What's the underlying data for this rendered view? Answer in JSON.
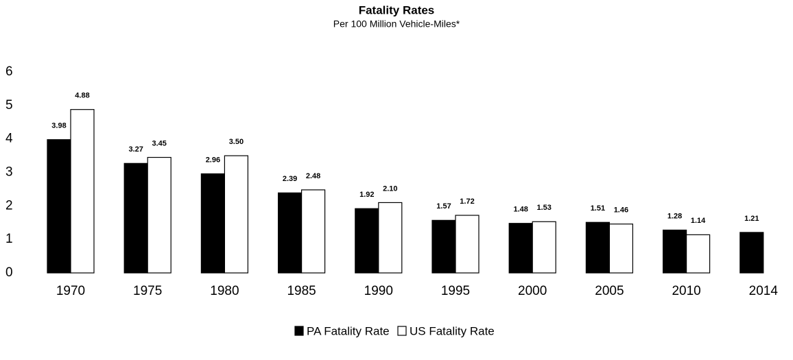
{
  "chart_data": {
    "type": "bar",
    "title": "Fatality Rates",
    "subtitle": "Per 100 Million Vehicle-Miles*",
    "categories": [
      "1970",
      "1975",
      "1980",
      "1985",
      "1990",
      "1995",
      "2000",
      "2005",
      "2010",
      "2014"
    ],
    "series": [
      {
        "name": "PA Fatality Rate",
        "color": "#000000",
        "values": [
          3.98,
          3.27,
          2.96,
          2.39,
          1.92,
          1.57,
          1.48,
          1.51,
          1.28,
          1.21
        ],
        "value_labels": [
          "3.98",
          "3.27",
          "2.96",
          "2.39",
          "1.92",
          "1.57",
          "1.48",
          "1.51",
          "1.28",
          "1.21"
        ]
      },
      {
        "name": "US Fatality Rate",
        "color": "#ffffff",
        "values": [
          4.88,
          3.45,
          3.5,
          2.48,
          2.1,
          1.72,
          1.53,
          1.46,
          1.14,
          null
        ],
        "value_labels": [
          "4.88",
          "3.45",
          "3.50",
          "2.48",
          "2.10",
          "1.72",
          "1.53",
          "1.46",
          "1.14",
          null
        ]
      }
    ],
    "ylim": [
      0,
      6
    ],
    "yticks": [
      0,
      1,
      2,
      3,
      4,
      5,
      6
    ],
    "grid": false,
    "legend": "bottom"
  }
}
